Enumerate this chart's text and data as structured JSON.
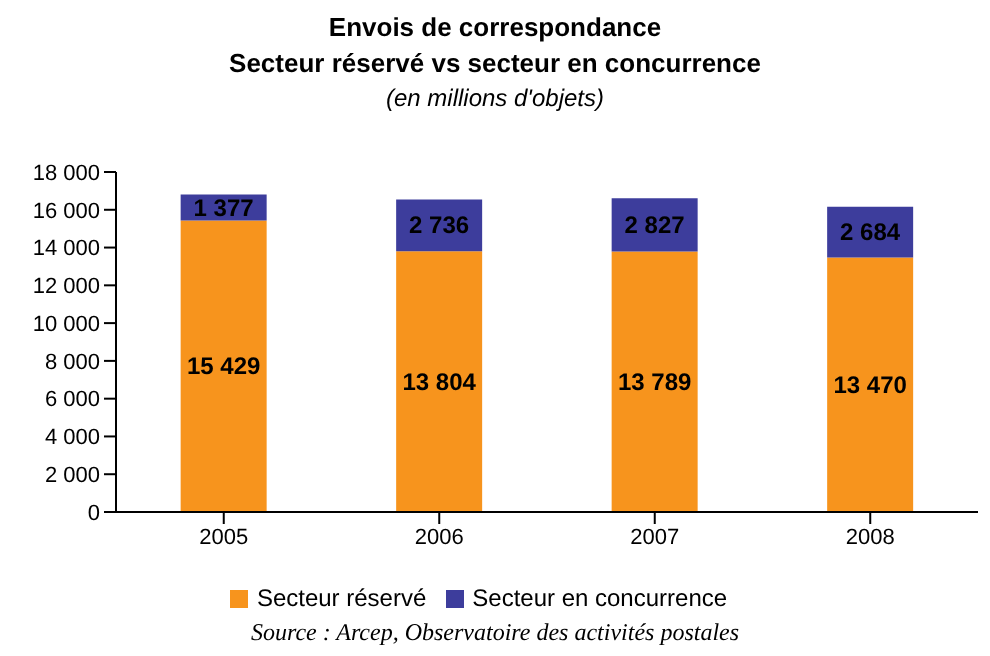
{
  "chart_data": {
    "type": "bar",
    "title": "Envois de correspondance",
    "subtitle": "Secteur réservé vs secteur en concurrence",
    "annotations": [
      "(en millions d'objets)",
      "Source : Arcep, Observatoire des activités postales"
    ],
    "categories": [
      "2005",
      "2006",
      "2007",
      "2008"
    ],
    "series": [
      {
        "name": "Secteur réservé",
        "color": "#f7941d",
        "values": [
          15429,
          13804,
          13789,
          13470
        ]
      },
      {
        "name": "Secteur en concurrence",
        "color": "#3d3d9c",
        "values": [
          1377,
          2736,
          2827,
          2684
        ]
      }
    ],
    "stacked": true,
    "data_labels": true,
    "grid": false,
    "legend": "bottom",
    "ylim": [
      0,
      18000
    ],
    "yticks": [
      {
        "value": 0,
        "label": "0"
      },
      {
        "value": 2000,
        "label": "2 000"
      },
      {
        "value": 4000,
        "label": "4 000"
      },
      {
        "value": 6000,
        "label": "6 000"
      },
      {
        "value": 8000,
        "label": "8 000"
      },
      {
        "value": 10000,
        "label": "10 000"
      },
      {
        "value": 12000,
        "label": "12 000"
      },
      {
        "value": 14000,
        "label": "14 000"
      },
      {
        "value": 16000,
        "label": "16 000"
      },
      {
        "value": 18000,
        "label": "18 000"
      }
    ]
  }
}
